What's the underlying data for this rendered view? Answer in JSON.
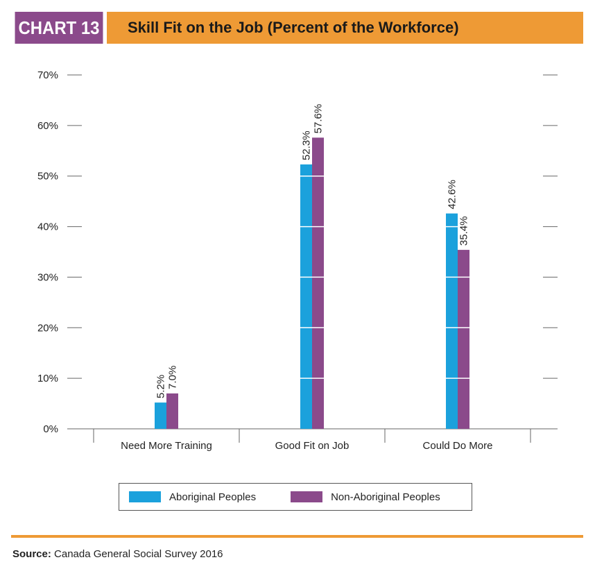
{
  "header": {
    "tag": "CHART 13",
    "title": "Skill Fit on the Job (Percent of the Workforce)",
    "tag_color": "#8B4A8B",
    "title_color": "#EE9A35"
  },
  "chart_data": {
    "type": "bar",
    "categories": [
      "Need More Training",
      "Good Fit on Job",
      "Could Do More"
    ],
    "series": [
      {
        "name": "Aboriginal Peoples",
        "color": "#1BA1DC",
        "values": [
          5.2,
          52.3,
          42.6
        ],
        "labels": [
          "5.2%",
          "52.3%",
          "42.6%"
        ]
      },
      {
        "name": "Non-Aboriginal Peoples",
        "color": "#8B4A8B",
        "values": [
          7.0,
          57.6,
          35.4
        ],
        "labels": [
          "7.0%",
          "57.6%",
          "35.4%"
        ]
      }
    ],
    "y_ticks": [
      "0%",
      "10%",
      "20%",
      "30%",
      "40%",
      "50%",
      "60%",
      "70%"
    ],
    "ylim": [
      0,
      70
    ],
    "grid": false,
    "legend_position": "bottom"
  },
  "source": {
    "label": "Source:",
    "text": "Canada General Social Survey 2016"
  },
  "rule_color": "#EE9A35"
}
